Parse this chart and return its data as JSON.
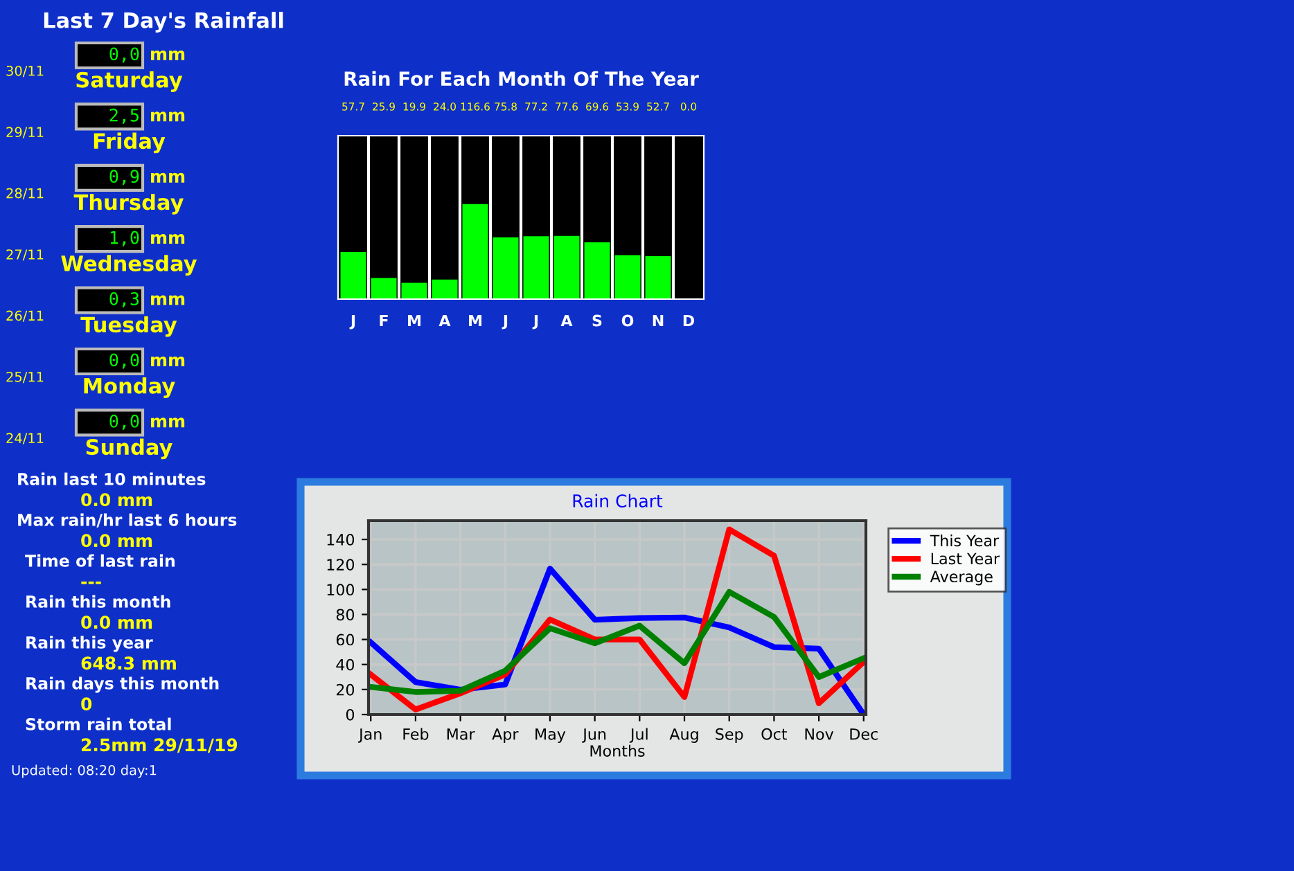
{
  "chart_data": [
    {
      "type": "other",
      "title": "Last 7 Day's Rainfall",
      "annotations": [
        "30/11",
        "0,0",
        "mm",
        "Saturday",
        "29/11",
        "2,5",
        "mm",
        "Friday",
        "28/11",
        "0,9",
        "mm",
        "Thursday",
        "27/11",
        "1,0",
        "mm",
        "Wednesday",
        "26/11",
        "0,3",
        "mm",
        "Tuesday",
        "25/11",
        "0,0",
        "mm",
        "Monday",
        "24/11",
        "0,0",
        "mm",
        "Sunday"
      ]
    },
    {
      "type": "bar",
      "title": "Rain For Each Month Of The Year",
      "categories": [
        "J",
        "F",
        "M",
        "A",
        "M",
        "J",
        "J",
        "A",
        "S",
        "O",
        "N",
        "D"
      ],
      "values": [
        57.7,
        25.9,
        19.9,
        24.0,
        116.6,
        75.8,
        77.2,
        77.6,
        69.6,
        53.9,
        52.7,
        0.0
      ],
      "color": "#00ff00",
      "value_labels": [
        "57.7",
        "25.9",
        "19.9",
        "24.0",
        "116.6",
        "75.8",
        "77.2",
        "77.6",
        "69.6",
        "53.9",
        "52.7",
        "0.0"
      ],
      "tick_labels": "x"
    },
    {
      "type": "line",
      "title": "Rain Chart",
      "xlabel": "Months",
      "categories": [
        "Jan",
        "Feb",
        "Mar",
        "Apr",
        "May",
        "Jun",
        "Jul",
        "Aug",
        "Sep",
        "Oct",
        "Nov",
        "Dec"
      ],
      "ylim": [
        0,
        155
      ],
      "yticks": [
        0,
        20,
        40,
        60,
        80,
        100,
        120,
        140
      ],
      "grid": true,
      "legend": "right",
      "series": [
        {
          "name": "This Year",
          "color": "#0000ff",
          "values": [
            57.7,
            25.9,
            19.9,
            24.0,
            116.6,
            75.8,
            77.2,
            77.6,
            69.6,
            53.9,
            52.7,
            0.0
          ]
        },
        {
          "name": "Last Year",
          "color": "#ff0000",
          "values": [
            32,
            4,
            17,
            32,
            76,
            60,
            60,
            14,
            148,
            127,
            9,
            42
          ]
        },
        {
          "name": "Average",
          "color": "#008000",
          "values": [
            22,
            18,
            19,
            35,
            69,
            57,
            71,
            41,
            98,
            78,
            30,
            45
          ]
        }
      ]
    },
    {
      "type": "other",
      "annotations": [
        "Rain last 10 minutes",
        "0.0 mm",
        "Max rain/hr last 6 hours",
        "0.0 mm",
        "Time of last rain",
        "---",
        "Rain this month",
        "0.0 mm",
        "Rain this year",
        "648.3 mm",
        "Rain days this month",
        "0",
        "Storm rain total",
        "2.5mm 29/11/19",
        "Updated: 08:20 day:1"
      ]
    }
  ]
}
